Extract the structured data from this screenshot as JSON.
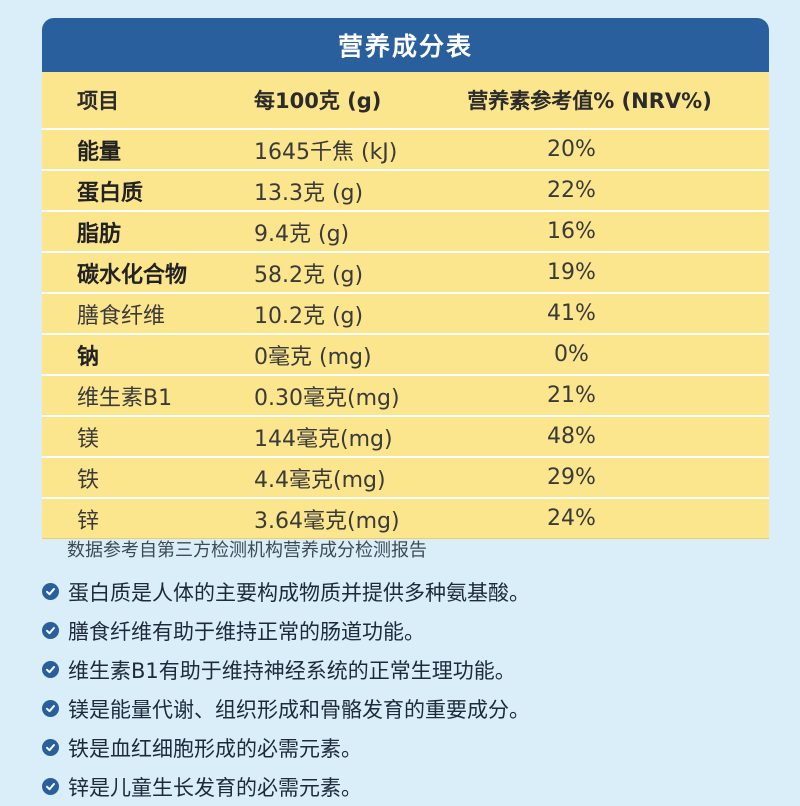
{
  "title": "营养成分表",
  "columns": [
    "项目",
    "每100克 (g)",
    "营养素参考值% (NRV%)"
  ],
  "rows": [
    {
      "item": "能量",
      "amount": "1645千焦 (kJ)",
      "nrv": "20%",
      "bold": true
    },
    {
      "item": "蛋白质",
      "amount": "13.3克 (g)",
      "nrv": "22%",
      "bold": true
    },
    {
      "item": "脂肪",
      "amount": "9.4克 (g)",
      "nrv": "16%",
      "bold": true
    },
    {
      "item": "碳水化合物",
      "amount": "58.2克 (g)",
      "nrv": "19%",
      "bold": true
    },
    {
      "item": "膳食纤维",
      "amount": "10.2克 (g)",
      "nrv": "41%",
      "bold": false
    },
    {
      "item": "钠",
      "amount": "0毫克 (mg)",
      "nrv": "0%",
      "bold": true
    },
    {
      "item": "维生素B1",
      "amount": "0.30毫克(mg)",
      "nrv": "21%",
      "bold": false
    },
    {
      "item": "镁",
      "amount": "144毫克(mg)",
      "nrv": "48%",
      "bold": false
    },
    {
      "item": "铁",
      "amount": "4.4毫克(mg)",
      "nrv": "29%",
      "bold": false
    },
    {
      "item": "锌",
      "amount": "3.64毫克(mg)",
      "nrv": "24%",
      "bold": false
    }
  ],
  "source": "数据参考自第三方检测机构营养成分检测报告",
  "bullets": [
    "蛋白质是人体的主要构成物质并提供多种氨基酸。",
    "膳食纤维有助于维持正常的肠道功能。",
    "维生素B1有助于维持神经系统的正常生理功能。",
    "镁是能量代谢、组织形成和骨骼发育的重要成分。",
    "铁是血红细胞形成的必需元素。",
    "锌是儿童生长发育的必需元素。"
  ],
  "icon": "check-circle-icon",
  "colors": {
    "header_bg": "#2a5f9e",
    "table_bg": "#fbe58d",
    "page_bg": "#d9eef9"
  }
}
